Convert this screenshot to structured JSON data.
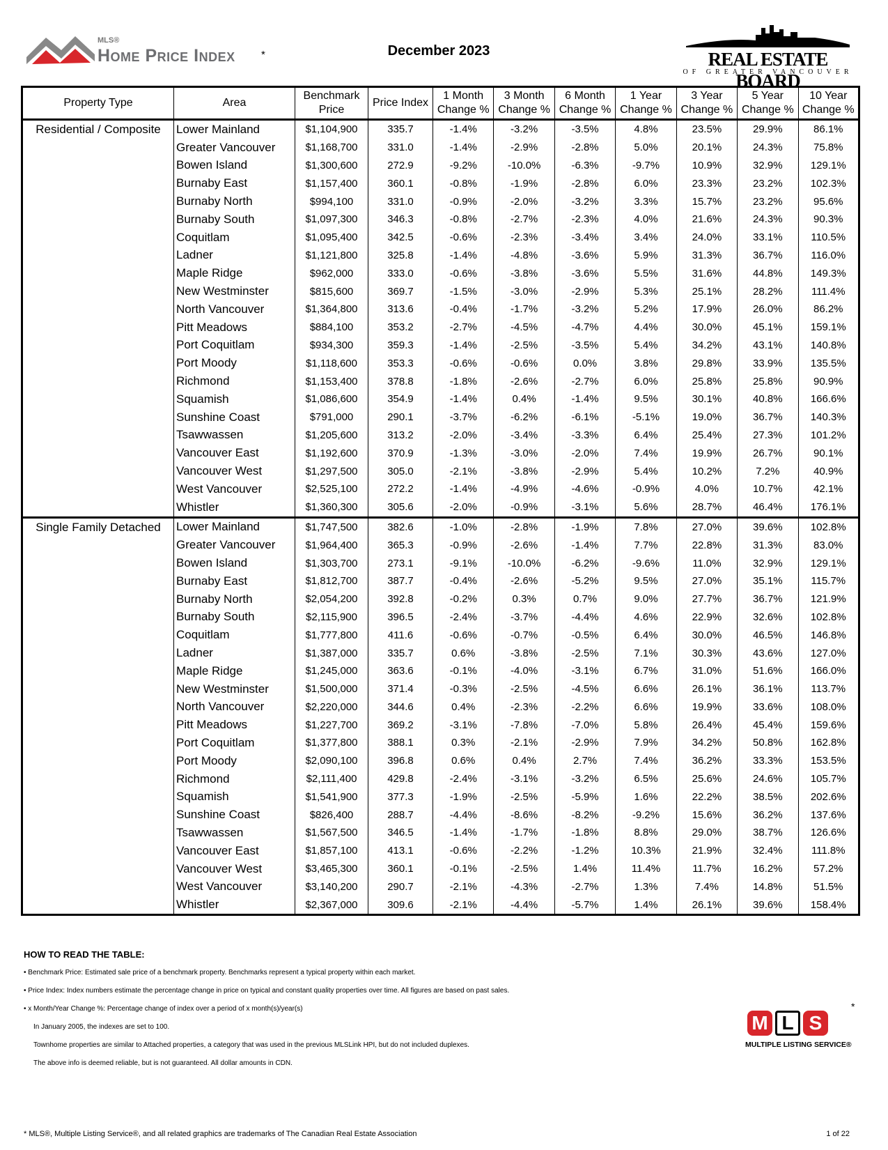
{
  "header": {
    "mls_label": "MLS®",
    "hpi_title": "Home Price Index",
    "hpi_asterisk": "*",
    "title": "December 2023",
    "board_name": "REAL ESTATE BOARD",
    "board_subtitle": "OF GREATER VANCOUVER"
  },
  "table": {
    "columns": [
      "Property Type",
      "Area",
      "Benchmark Price",
      "Price Index",
      "1 Month Change %",
      "3 Month Change %",
      "6 Month Change %",
      "1 Year Change %",
      "3 Year Change %",
      "5 Year Change %",
      "10 Year Change %"
    ],
    "groups": [
      {
        "property_type": "Residential / Composite",
        "rows": [
          [
            "Lower Mainland",
            "$1,104,900",
            "335.7",
            "-1.4%",
            "-3.2%",
            "-3.5%",
            "4.8%",
            "23.5%",
            "29.9%",
            "86.1%"
          ],
          [
            "Greater Vancouver",
            "$1,168,700",
            "331.0",
            "-1.4%",
            "-2.9%",
            "-2.8%",
            "5.0%",
            "20.1%",
            "24.3%",
            "75.8%"
          ],
          [
            "Bowen Island",
            "$1,300,600",
            "272.9",
            "-9.2%",
            "-10.0%",
            "-6.3%",
            "-9.7%",
            "10.9%",
            "32.9%",
            "129.1%"
          ],
          [
            "Burnaby East",
            "$1,157,400",
            "360.1",
            "-0.8%",
            "-1.9%",
            "-2.8%",
            "6.0%",
            "23.3%",
            "23.2%",
            "102.3%"
          ],
          [
            "Burnaby North",
            "$994,100",
            "331.0",
            "-0.9%",
            "-2.0%",
            "-3.2%",
            "3.3%",
            "15.7%",
            "23.2%",
            "95.6%"
          ],
          [
            "Burnaby South",
            "$1,097,300",
            "346.3",
            "-0.8%",
            "-2.7%",
            "-2.3%",
            "4.0%",
            "21.6%",
            "24.3%",
            "90.3%"
          ],
          [
            "Coquitlam",
            "$1,095,400",
            "342.5",
            "-0.6%",
            "-2.3%",
            "-3.4%",
            "3.4%",
            "24.0%",
            "33.1%",
            "110.5%"
          ],
          [
            "Ladner",
            "$1,121,800",
            "325.8",
            "-1.4%",
            "-4.8%",
            "-3.6%",
            "5.9%",
            "31.3%",
            "36.7%",
            "116.0%"
          ],
          [
            "Maple Ridge",
            "$962,000",
            "333.0",
            "-0.6%",
            "-3.8%",
            "-3.6%",
            "5.5%",
            "31.6%",
            "44.8%",
            "149.3%"
          ],
          [
            "New Westminster",
            "$815,600",
            "369.7",
            "-1.5%",
            "-3.0%",
            "-2.9%",
            "5.3%",
            "25.1%",
            "28.2%",
            "111.4%"
          ],
          [
            "North Vancouver",
            "$1,364,800",
            "313.6",
            "-0.4%",
            "-1.7%",
            "-3.2%",
            "5.2%",
            "17.9%",
            "26.0%",
            "86.2%"
          ],
          [
            "Pitt Meadows",
            "$884,100",
            "353.2",
            "-2.7%",
            "-4.5%",
            "-4.7%",
            "4.4%",
            "30.0%",
            "45.1%",
            "159.1%"
          ],
          [
            "Port Coquitlam",
            "$934,300",
            "359.3",
            "-1.4%",
            "-2.5%",
            "-3.5%",
            "5.4%",
            "34.2%",
            "43.1%",
            "140.8%"
          ],
          [
            "Port Moody",
            "$1,118,600",
            "353.3",
            "-0.6%",
            "-0.6%",
            "0.0%",
            "3.8%",
            "29.8%",
            "33.9%",
            "135.5%"
          ],
          [
            "Richmond",
            "$1,153,400",
            "378.8",
            "-1.8%",
            "-2.6%",
            "-2.7%",
            "6.0%",
            "25.8%",
            "25.8%",
            "90.9%"
          ],
          [
            "Squamish",
            "$1,086,600",
            "354.9",
            "-1.4%",
            "0.4%",
            "-1.4%",
            "9.5%",
            "30.1%",
            "40.8%",
            "166.6%"
          ],
          [
            "Sunshine Coast",
            "$791,000",
            "290.1",
            "-3.7%",
            "-6.2%",
            "-6.1%",
            "-5.1%",
            "19.0%",
            "36.7%",
            "140.3%"
          ],
          [
            "Tsawwassen",
            "$1,205,600",
            "313.2",
            "-2.0%",
            "-3.4%",
            "-3.3%",
            "6.4%",
            "25.4%",
            "27.3%",
            "101.2%"
          ],
          [
            "Vancouver East",
            "$1,192,600",
            "370.9",
            "-1.3%",
            "-3.0%",
            "-2.0%",
            "7.4%",
            "19.9%",
            "26.7%",
            "90.1%"
          ],
          [
            "Vancouver West",
            "$1,297,500",
            "305.0",
            "-2.1%",
            "-3.8%",
            "-2.9%",
            "5.4%",
            "10.2%",
            "7.2%",
            "40.9%"
          ],
          [
            "West Vancouver",
            "$2,525,100",
            "272.2",
            "-1.4%",
            "-4.9%",
            "-4.6%",
            "-0.9%",
            "4.0%",
            "10.7%",
            "42.1%"
          ],
          [
            "Whistler",
            "$1,360,300",
            "305.6",
            "-2.0%",
            "-0.9%",
            "-3.1%",
            "5.6%",
            "28.7%",
            "46.4%",
            "176.1%"
          ]
        ]
      },
      {
        "property_type": "Single Family Detached",
        "rows": [
          [
            "Lower Mainland",
            "$1,747,500",
            "382.6",
            "-1.0%",
            "-2.8%",
            "-1.9%",
            "7.8%",
            "27.0%",
            "39.6%",
            "102.8%"
          ],
          [
            "Greater Vancouver",
            "$1,964,400",
            "365.3",
            "-0.9%",
            "-2.6%",
            "-1.4%",
            "7.7%",
            "22.8%",
            "31.3%",
            "83.0%"
          ],
          [
            "Bowen Island",
            "$1,303,700",
            "273.1",
            "-9.1%",
            "-10.0%",
            "-6.2%",
            "-9.6%",
            "11.0%",
            "32.9%",
            "129.1%"
          ],
          [
            "Burnaby East",
            "$1,812,700",
            "387.7",
            "-0.4%",
            "-2.6%",
            "-5.2%",
            "9.5%",
            "27.0%",
            "35.1%",
            "115.7%"
          ],
          [
            "Burnaby North",
            "$2,054,200",
            "392.8",
            "-0.2%",
            "0.3%",
            "0.7%",
            "9.0%",
            "27.7%",
            "36.7%",
            "121.9%"
          ],
          [
            "Burnaby South",
            "$2,115,900",
            "396.5",
            "-2.4%",
            "-3.7%",
            "-4.4%",
            "4.6%",
            "22.9%",
            "32.6%",
            "102.8%"
          ],
          [
            "Coquitlam",
            "$1,777,800",
            "411.6",
            "-0.6%",
            "-0.7%",
            "-0.5%",
            "6.4%",
            "30.0%",
            "46.5%",
            "146.8%"
          ],
          [
            "Ladner",
            "$1,387,000",
            "335.7",
            "0.6%",
            "-3.8%",
            "-2.5%",
            "7.1%",
            "30.3%",
            "43.6%",
            "127.0%"
          ],
          [
            "Maple Ridge",
            "$1,245,000",
            "363.6",
            "-0.1%",
            "-4.0%",
            "-3.1%",
            "6.7%",
            "31.0%",
            "51.6%",
            "166.0%"
          ],
          [
            "New Westminster",
            "$1,500,000",
            "371.4",
            "-0.3%",
            "-2.5%",
            "-4.5%",
            "6.6%",
            "26.1%",
            "36.1%",
            "113.7%"
          ],
          [
            "North Vancouver",
            "$2,220,000",
            "344.6",
            "0.4%",
            "-2.3%",
            "-2.2%",
            "6.6%",
            "19.9%",
            "33.6%",
            "108.0%"
          ],
          [
            "Pitt Meadows",
            "$1,227,700",
            "369.2",
            "-3.1%",
            "-7.8%",
            "-7.0%",
            "5.8%",
            "26.4%",
            "45.4%",
            "159.6%"
          ],
          [
            "Port Coquitlam",
            "$1,377,800",
            "388.1",
            "0.3%",
            "-2.1%",
            "-2.9%",
            "7.9%",
            "34.2%",
            "50.8%",
            "162.8%"
          ],
          [
            "Port Moody",
            "$2,090,100",
            "396.8",
            "0.6%",
            "0.4%",
            "2.7%",
            "7.4%",
            "36.2%",
            "33.3%",
            "153.5%"
          ],
          [
            "Richmond",
            "$2,111,400",
            "429.8",
            "-2.4%",
            "-3.1%",
            "-3.2%",
            "6.5%",
            "25.6%",
            "24.6%",
            "105.7%"
          ],
          [
            "Squamish",
            "$1,541,900",
            "377.3",
            "-1.9%",
            "-2.5%",
            "-5.9%",
            "1.6%",
            "22.2%",
            "38.5%",
            "202.6%"
          ],
          [
            "Sunshine Coast",
            "$826,400",
            "288.7",
            "-4.4%",
            "-8.6%",
            "-8.2%",
            "-9.2%",
            "15.6%",
            "36.2%",
            "137.6%"
          ],
          [
            "Tsawwassen",
            "$1,567,500",
            "346.5",
            "-1.4%",
            "-1.7%",
            "-1.8%",
            "8.8%",
            "29.0%",
            "38.7%",
            "126.6%"
          ],
          [
            "Vancouver East",
            "$1,857,100",
            "413.1",
            "-0.6%",
            "-2.2%",
            "-1.2%",
            "10.3%",
            "21.9%",
            "32.4%",
            "111.8%"
          ],
          [
            "Vancouver West",
            "$3,465,300",
            "360.1",
            "-0.1%",
            "-2.5%",
            "1.4%",
            "11.4%",
            "11.7%",
            "16.2%",
            "57.2%"
          ],
          [
            "West Vancouver",
            "$3,140,200",
            "290.7",
            "-2.1%",
            "-4.3%",
            "-2.7%",
            "1.3%",
            "7.4%",
            "14.8%",
            "51.5%"
          ],
          [
            "Whistler",
            "$2,367,000",
            "309.6",
            "-2.1%",
            "-4.4%",
            "-5.7%",
            "1.4%",
            "26.1%",
            "39.6%",
            "158.4%"
          ]
        ]
      }
    ]
  },
  "notes": {
    "heading": "HOW TO READ THE TABLE:",
    "bullets": [
      "• Benchmark Price:  Estimated sale price of a benchmark property. Benchmarks represent a typical property within each market.",
      "• Price Index:  Index numbers estimate the percentage change in price on typical and constant  quality properties over time. All figures are based on past sales.",
      "• x Month/Year Change %:  Percentage change of index over a period of x month(s)/year(s)"
    ],
    "remarks": [
      "In January 2005, the indexes are set to 100.",
      "Townhome properties are similar to Attached properties, a category that was used in the previous MLSLink HPI, but do not included duplexes.",
      "The above info is deemed reliable, but is not guaranteed. All dollar amounts in CDN."
    ]
  },
  "mls_logo": {
    "letters": [
      "M",
      "L",
      "S"
    ],
    "name": "MULTIPLE LISTING SERVICE®",
    "asterisk": "*"
  },
  "footer": {
    "trademark": "* MLS®, Multiple Listing Service®, and all related graphics are trademarks of The Canadian Real Estate Association",
    "page": "1 of 22"
  }
}
